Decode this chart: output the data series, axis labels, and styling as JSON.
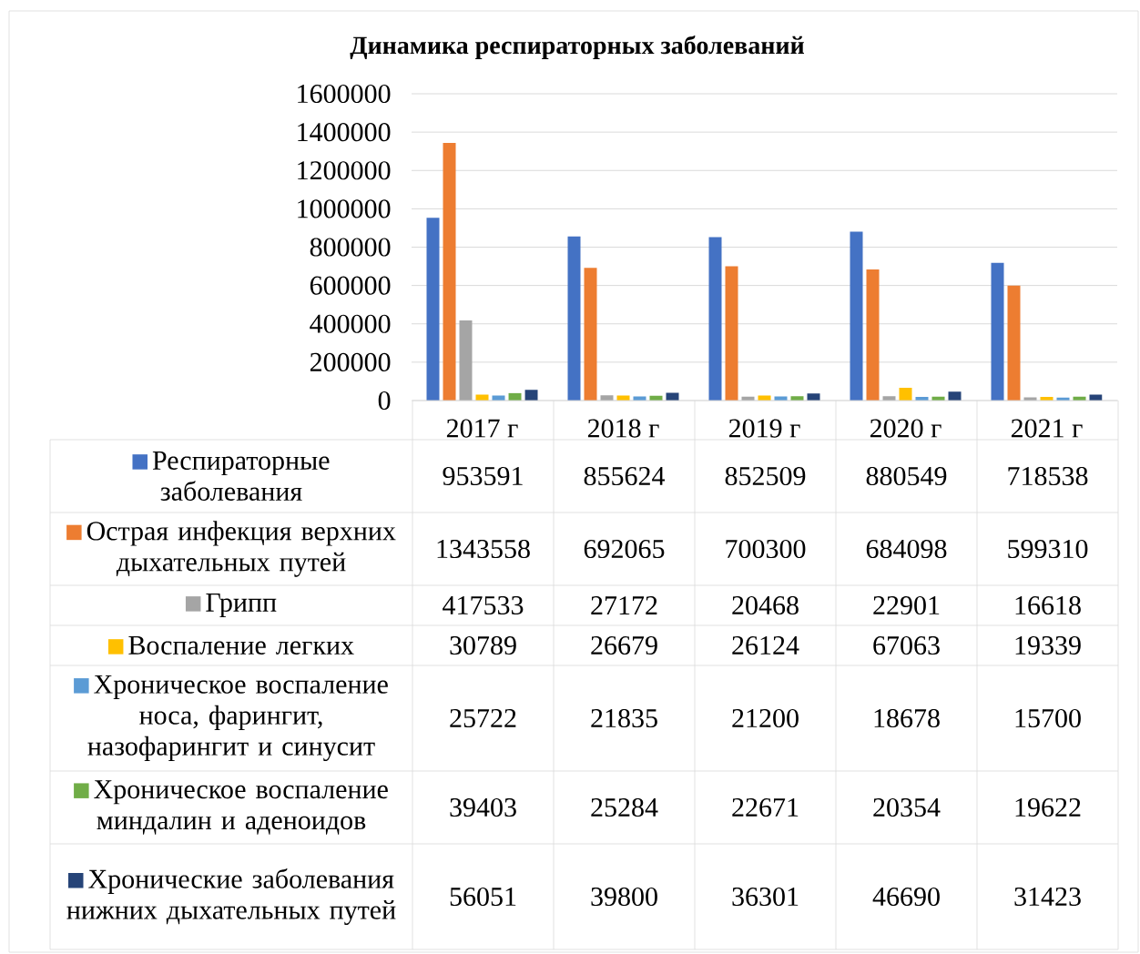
{
  "chart_data": {
    "type": "bar",
    "title": "Динамика респираторных заболеваний",
    "categories": [
      "2017 г",
      "2018 г",
      "2019 г",
      "2020 г",
      "2021 г"
    ],
    "series": [
      {
        "name": "Респираторные заболевания",
        "color": "#4472c4",
        "values": [
          953591,
          855624,
          852509,
          880549,
          718538
        ]
      },
      {
        "name": "Острая инфекция верхних дыхательных путей",
        "color": "#ed7d31",
        "values": [
          1343558,
          692065,
          700300,
          684098,
          599310
        ]
      },
      {
        "name": "Грипп",
        "color": "#a5a5a5",
        "values": [
          417533,
          27172,
          20468,
          22901,
          16618
        ]
      },
      {
        "name": "Воспаление легких",
        "color": "#ffc000",
        "values": [
          30789,
          26679,
          26124,
          67063,
          19339
        ]
      },
      {
        "name": "Хроническое воспаление носа, фарингит, назофарингит и синусит",
        "color": "#5b9bd5",
        "values": [
          25722,
          21835,
          21200,
          18678,
          15700
        ]
      },
      {
        "name": "Хроническое воспаление миндалин и аденоидов",
        "color": "#70ad47",
        "values": [
          39403,
          25284,
          22671,
          20354,
          19622
        ]
      },
      {
        "name": "Хронические заболевания нижних дыхательных путей",
        "color": "#264478",
        "values": [
          56051,
          39800,
          36301,
          46690,
          31423
        ]
      }
    ],
    "ylim": [
      0,
      1600000
    ],
    "yticks": [
      0,
      200000,
      400000,
      600000,
      800000,
      1000000,
      1200000,
      1400000,
      1600000
    ],
    "grid": "y",
    "legend": "bottom",
    "data_labels": true
  }
}
